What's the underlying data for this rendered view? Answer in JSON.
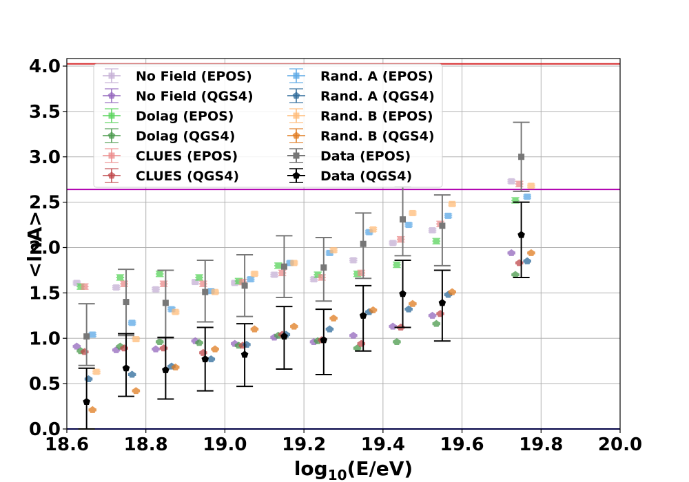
{
  "colors": {
    "nofield_epos": "#c5b0d5",
    "nofield_qgs4": "#9467bd",
    "dolag_epos": "#59d45c",
    "dolag_qgs4": "#4a9a4c",
    "clues_epos": "#ec8b8b",
    "clues_qgs4": "#c0474a",
    "randA_epos": "#5aa8e6",
    "randA_qgs4": "#2d6a9a",
    "randB_epos": "#ffbb78",
    "randB_qgs4": "#e07b20",
    "data_epos": "#777777",
    "data_qgs4": "#000000",
    "line_top": "#d62728",
    "line_mid": "#b000b0",
    "line_bottom": "#0000aa"
  },
  "chart_data": {
    "type": "scatter",
    "title": "",
    "xlabel": "log",
    "xlabel_sub": "10",
    "xlabel_suffix": "(E/eV)",
    "ylabel": "<lnA>",
    "xlim": [
      18.6,
      20.0
    ],
    "ylim": [
      0.0,
      4.1
    ],
    "grid": true,
    "legend_position": "top-left",
    "xticks": [
      18.6,
      18.8,
      19.0,
      19.2,
      19.4,
      19.6,
      19.8,
      20.0
    ],
    "xtick_labels": [
      "18.6",
      "18.8",
      "19.0",
      "19.2",
      "19.4",
      "19.6",
      "19.8",
      "20.0"
    ],
    "yticks": [
      0.0,
      0.5,
      1.0,
      1.5,
      2.0,
      2.5,
      3.0,
      3.5,
      4.0
    ],
    "ytick_labels": [
      "0.0",
      "0.5",
      "1.0",
      "1.5",
      "2.0",
      "2.5",
      "3.0",
      "3.5",
      "4.0"
    ],
    "hlines": [
      {
        "y": 4.025,
        "color_key": "line_top"
      },
      {
        "y": 2.64,
        "color_key": "line_mid"
      },
      {
        "y": 0.0,
        "color_key": "line_bottom"
      }
    ],
    "series": [
      {
        "name": "No Field (EPOS)",
        "color_key": "nofield_epos",
        "marker": "square",
        "x": [
          18.625,
          18.725,
          18.825,
          18.925,
          19.025,
          19.125,
          19.225,
          19.325,
          19.425,
          19.525,
          19.725
        ],
        "y": [
          1.61,
          1.56,
          1.54,
          1.62,
          1.61,
          1.7,
          1.65,
          1.86,
          2.05,
          2.19,
          2.73
        ],
        "xerr": 0.01,
        "yerr": 0.02
      },
      {
        "name": "No Field (QGS4)",
        "color_key": "nofield_qgs4",
        "marker": "pentagon",
        "x": [
          18.625,
          18.725,
          18.825,
          18.925,
          19.025,
          19.125,
          19.225,
          19.325,
          19.425,
          19.525,
          19.725
        ],
        "y": [
          0.91,
          0.87,
          0.88,
          0.97,
          0.94,
          1.01,
          0.96,
          1.03,
          1.13,
          1.25,
          1.94
        ],
        "xerr": 0.01,
        "yerr": 0.01
      },
      {
        "name": "Dolag (EPOS)",
        "color_key": "dolag_epos",
        "marker": "square",
        "x": [
          18.635,
          18.735,
          18.835,
          18.935,
          19.035,
          19.135,
          19.235,
          19.335,
          19.435,
          19.535,
          19.735
        ],
        "y": [
          1.57,
          1.67,
          1.71,
          1.67,
          1.63,
          1.8,
          1.7,
          1.71,
          1.81,
          2.07,
          2.52
        ],
        "xerr": 0.01,
        "yerr": 0.03
      },
      {
        "name": "Dolag (QGS4)",
        "color_key": "dolag_qgs4",
        "marker": "pentagon",
        "x": [
          18.635,
          18.735,
          18.835,
          18.935,
          19.035,
          19.135,
          19.235,
          19.335,
          19.435,
          19.535,
          19.735
        ],
        "y": [
          0.86,
          0.91,
          0.96,
          0.95,
          0.92,
          1.03,
          0.97,
          0.89,
          0.96,
          1.16,
          1.7
        ],
        "xerr": 0.01,
        "yerr": 0.01
      },
      {
        "name": "CLUES (EPOS)",
        "color_key": "clues_epos",
        "marker": "square",
        "x": [
          18.645,
          18.745,
          18.845,
          18.945,
          19.045,
          19.145,
          19.245,
          19.345,
          19.445,
          19.545,
          19.745
        ],
        "y": [
          1.57,
          1.6,
          1.6,
          1.6,
          1.62,
          1.72,
          1.67,
          1.72,
          2.09,
          2.26,
          2.7
        ],
        "xerr": 0.01,
        "yerr": 0.03
      },
      {
        "name": "CLUES (QGS4)",
        "color_key": "clues_qgs4",
        "marker": "pentagon",
        "x": [
          18.645,
          18.745,
          18.845,
          18.945,
          19.045,
          19.145,
          19.245,
          19.345,
          19.445,
          19.545,
          19.745
        ],
        "y": [
          0.85,
          0.89,
          0.89,
          0.84,
          0.92,
          1.04,
          0.98,
          0.94,
          1.12,
          1.27,
          1.83
        ],
        "xerr": 0.01,
        "yerr": 0.01
      },
      {
        "name": "Rand. A (EPOS)",
        "color_key": "randA_epos",
        "marker": "square",
        "x": [
          18.665,
          18.765,
          18.865,
          18.965,
          19.065,
          19.165,
          19.265,
          19.365,
          19.465,
          19.565,
          19.765
        ],
        "y": [
          1.04,
          1.17,
          1.32,
          1.52,
          1.65,
          1.83,
          1.94,
          2.17,
          2.25,
          2.35,
          2.56
        ],
        "xerr": 0.01,
        "yerr": 0.02
      },
      {
        "name": "Rand. A (QGS4)",
        "color_key": "randA_qgs4",
        "marker": "pentagon",
        "x": [
          18.655,
          18.765,
          18.865,
          18.965,
          19.055,
          19.155,
          19.265,
          19.365,
          19.465,
          19.565,
          19.765
        ],
        "y": [
          0.55,
          0.6,
          0.69,
          0.77,
          0.93,
          1.04,
          1.1,
          1.29,
          1.32,
          1.48,
          1.85
        ],
        "xerr": 0.01,
        "yerr": 0.01
      },
      {
        "name": "Rand. B (EPOS)",
        "color_key": "randB_epos",
        "marker": "square",
        "x": [
          18.675,
          18.775,
          18.875,
          18.975,
          19.075,
          19.175,
          19.275,
          19.375,
          19.475,
          19.575,
          19.775
        ],
        "y": [
          0.63,
          0.99,
          1.29,
          1.51,
          1.71,
          1.83,
          1.97,
          2.2,
          2.38,
          2.48,
          2.68
        ],
        "xerr": 0.01,
        "yerr": 0.02
      },
      {
        "name": "Rand. B (QGS4)",
        "color_key": "randB_qgs4",
        "marker": "pentagon",
        "x": [
          18.665,
          18.775,
          18.875,
          18.975,
          19.075,
          19.175,
          19.275,
          19.375,
          19.475,
          19.575,
          19.775
        ],
        "y": [
          0.21,
          0.42,
          0.68,
          0.88,
          1.1,
          1.13,
          1.22,
          1.31,
          1.38,
          1.51,
          1.94
        ],
        "xerr": 0.01,
        "yerr": 0.01
      },
      {
        "name": "Data (EPOS)",
        "color_key": "data_epos",
        "marker": "square",
        "x": [
          18.65,
          18.75,
          18.85,
          18.95,
          19.05,
          19.15,
          19.25,
          19.35,
          19.45,
          19.55,
          19.75
        ],
        "y": [
          1.02,
          1.4,
          1.39,
          1.51,
          1.58,
          1.79,
          1.78,
          2.04,
          2.31,
          2.24,
          3.0
        ],
        "yerr_low": [
          0.32,
          0.37,
          0.39,
          0.33,
          0.34,
          0.34,
          0.37,
          0.38,
          0.4,
          0.44,
          0.38
        ],
        "yerr_high": [
          0.36,
          0.36,
          0.36,
          0.35,
          0.34,
          0.34,
          0.33,
          0.34,
          0.36,
          0.34,
          0.38
        ]
      },
      {
        "name": "Data (QGS4)",
        "color_key": "data_qgs4",
        "marker": "pentagon",
        "x": [
          18.65,
          18.75,
          18.85,
          18.95,
          19.05,
          19.15,
          19.25,
          19.35,
          19.45,
          19.55,
          19.75
        ],
        "y": [
          0.3,
          0.67,
          0.65,
          0.77,
          0.82,
          1.02,
          0.98,
          1.25,
          1.49,
          1.39,
          2.14
        ],
        "yerr_low": [
          0.3,
          0.31,
          0.32,
          0.35,
          0.35,
          0.36,
          0.38,
          0.39,
          0.37,
          0.42,
          0.47
        ],
        "yerr_high": [
          0.37,
          0.38,
          0.36,
          0.35,
          0.34,
          0.33,
          0.34,
          0.33,
          0.37,
          0.36,
          0.36
        ]
      }
    ]
  }
}
